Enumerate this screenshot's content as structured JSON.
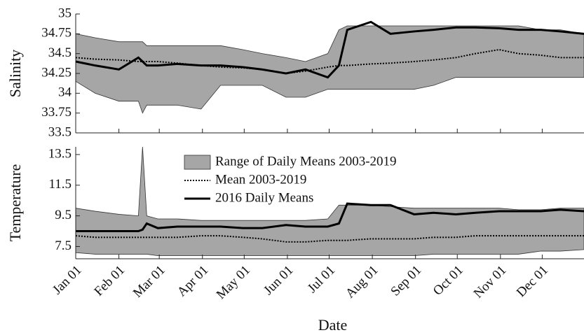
{
  "chart_data": [
    {
      "type": "line",
      "ylabel": "Salinity",
      "x": [
        1,
        15,
        32,
        46,
        49,
        52,
        60,
        74,
        91,
        105,
        121,
        135,
        152,
        166,
        182,
        190,
        196,
        213,
        227,
        244,
        258,
        274,
        288,
        305,
        319,
        335,
        349,
        366
      ],
      "xlim": [
        1,
        366
      ],
      "xticks": [
        1,
        32,
        61,
        92,
        122,
        153,
        183,
        214,
        245,
        275,
        306,
        336
      ],
      "ylim": [
        33.5,
        35
      ],
      "yticks": [
        33.5,
        33.75,
        34,
        34.25,
        34.5,
        34.75,
        35
      ],
      "series": [
        {
          "style": "range",
          "color": "#a6a6a6",
          "values": [
            34.75,
            34.7,
            34.65,
            34.65,
            34.65,
            34.6,
            34.6,
            34.6,
            34.6,
            34.6,
            34.55,
            34.5,
            34.45,
            34.4,
            34.5,
            34.8,
            34.85,
            34.85,
            34.85,
            34.85,
            34.85,
            34.85,
            34.85,
            34.85,
            34.85,
            34.8,
            34.8,
            34.75
          ],
          "lower": [
            34.15,
            34.0,
            33.9,
            33.9,
            33.75,
            33.85,
            33.85,
            33.85,
            33.8,
            34.1,
            34.1,
            34.1,
            33.95,
            33.95,
            34.05,
            34.05,
            34.05,
            34.05,
            34.05,
            34.05,
            34.1,
            34.2,
            34.2,
            34.2,
            34.2,
            34.2,
            34.2,
            34.2
          ]
        },
        {
          "style": "dotted",
          "color": "#000000",
          "values": [
            34.45,
            34.43,
            34.42,
            34.4,
            34.4,
            34.4,
            34.4,
            34.38,
            34.35,
            34.33,
            34.32,
            34.3,
            34.25,
            34.28,
            34.33,
            34.35,
            34.35,
            34.37,
            34.38,
            34.4,
            34.42,
            34.45,
            34.5,
            34.55,
            34.5,
            34.48,
            34.45,
            34.45
          ]
        },
        {
          "style": "solid",
          "color": "#000000",
          "values": [
            34.4,
            34.35,
            34.3,
            34.45,
            34.4,
            34.35,
            34.35,
            34.37,
            34.35,
            34.35,
            34.33,
            34.3,
            34.25,
            34.3,
            34.2,
            34.35,
            34.8,
            34.9,
            34.75,
            34.78,
            34.8,
            34.83,
            34.83,
            34.82,
            34.8,
            34.8,
            34.78,
            34.75
          ]
        }
      ]
    },
    {
      "type": "line",
      "ylabel": "Temperature",
      "xlabel": "Date",
      "x": [
        1,
        15,
        32,
        46,
        49,
        52,
        60,
        74,
        91,
        105,
        121,
        135,
        152,
        166,
        182,
        190,
        196,
        213,
        227,
        244,
        258,
        274,
        288,
        305,
        319,
        335,
        349,
        366
      ],
      "xlim": [
        1,
        366
      ],
      "xticks": [
        {
          "value": 1,
          "label": "Jan 01"
        },
        {
          "value": 32,
          "label": "Feb 01"
        },
        {
          "value": 61,
          "label": "Mar 01"
        },
        {
          "value": 92,
          "label": "Apr 01"
        },
        {
          "value": 122,
          "label": "May 01"
        },
        {
          "value": 153,
          "label": "Jun 01"
        },
        {
          "value": 183,
          "label": "Jul 01"
        },
        {
          "value": 214,
          "label": "Aug 01"
        },
        {
          "value": 245,
          "label": "Sep 01"
        },
        {
          "value": 275,
          "label": "Oct 01"
        },
        {
          "value": 306,
          "label": "Nov 01"
        },
        {
          "value": 336,
          "label": "Dec 01"
        }
      ],
      "ylim": [
        6.7,
        14
      ],
      "yticks": [
        7.5,
        9.5,
        11.5,
        13.5
      ],
      "series": [
        {
          "name": "Range of Daily Means 2003-2019",
          "style": "range",
          "color": "#a6a6a6",
          "values": [
            10,
            9.8,
            9.6,
            9.5,
            14,
            9.5,
            9.3,
            9.3,
            9.2,
            9.2,
            9.2,
            9.2,
            9.2,
            9.2,
            9.3,
            10.2,
            10.2,
            10.2,
            10.1,
            10,
            10,
            10,
            10,
            10,
            9.9,
            9.9,
            10,
            10
          ],
          "lower": [
            7.1,
            7,
            7,
            7,
            7,
            7,
            6.9,
            6.9,
            6.9,
            6.9,
            6.9,
            6.9,
            6.9,
            6.9,
            6.9,
            6.9,
            6.9,
            6.9,
            6.9,
            6.9,
            7,
            7,
            7,
            7,
            7,
            7.2,
            7.2,
            7.3
          ]
        },
        {
          "name": "Mean 2003-2019",
          "style": "dotted",
          "color": "#000000",
          "values": [
            8.2,
            8.1,
            8.1,
            8.1,
            8.1,
            8.1,
            8.1,
            8.1,
            8.2,
            8.2,
            8.1,
            8.0,
            7.8,
            7.8,
            7.9,
            7.9,
            7.9,
            8.0,
            8.0,
            8.0,
            8.1,
            8.1,
            8.2,
            8.2,
            8.2,
            8.2,
            8.2,
            8.2
          ]
        },
        {
          "name": "2016 Daily Means",
          "style": "solid",
          "color": "#000000",
          "values": [
            8.5,
            8.5,
            8.5,
            8.5,
            8.6,
            9.0,
            8.7,
            8.8,
            8.8,
            8.8,
            8.7,
            8.7,
            8.9,
            8.8,
            8.8,
            9.0,
            10.3,
            10.2,
            10.2,
            9.6,
            9.7,
            9.6,
            9.7,
            9.8,
            9.8,
            9.8,
            9.9,
            9.8
          ]
        }
      ]
    }
  ]
}
